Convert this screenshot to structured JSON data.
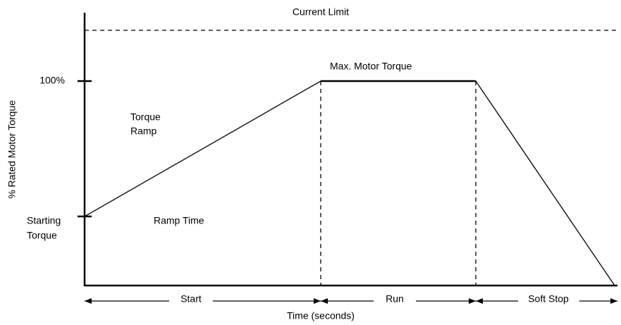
{
  "diagram": {
    "current_limit": "Current Limit",
    "max_torque": "Max. Motor Torque",
    "y_axis_label": "% Rated Motor Torque",
    "y_tick_100": "100%",
    "starting_torque": [
      "Starting",
      "Torque"
    ],
    "torque_ramp": [
      "Torque",
      "Ramp"
    ],
    "ramp_time": "Ramp Time",
    "phases": [
      "Start",
      "Run",
      "Soft Stop"
    ],
    "x_axis_label": "Time (seconds)"
  }
}
